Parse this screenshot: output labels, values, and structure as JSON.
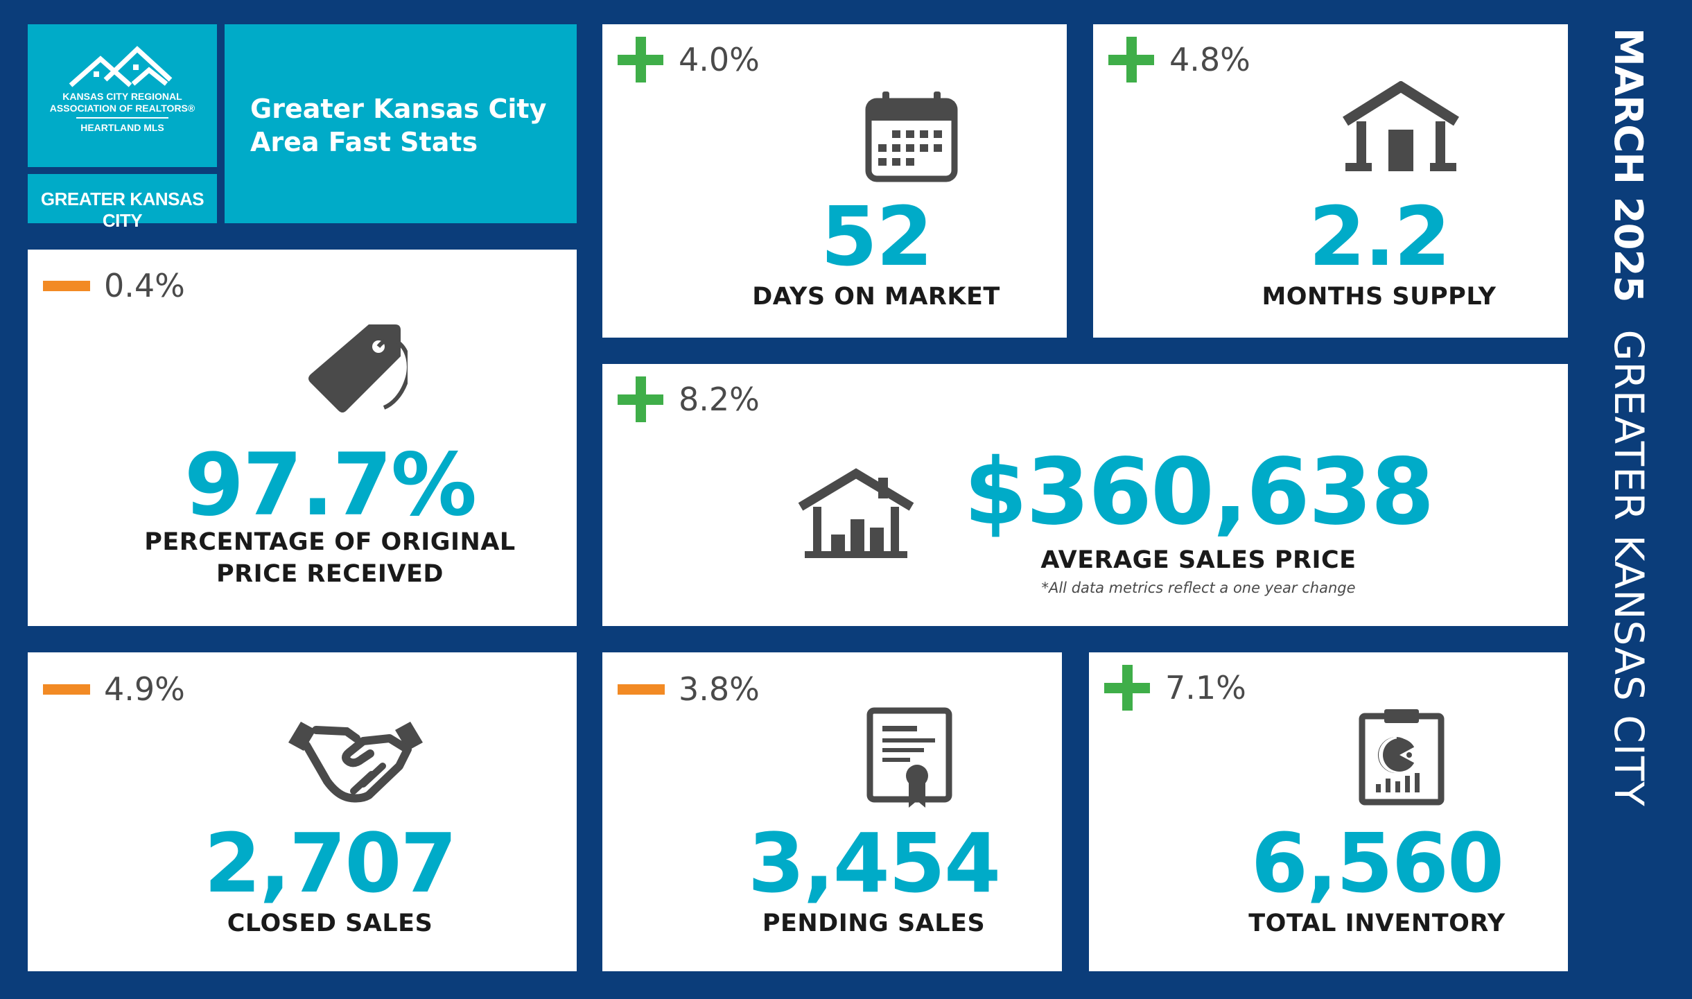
{
  "brand": {
    "logo_line1": "KANSAS CITY REGIONAL",
    "logo_line2": "ASSOCIATION OF REALTORS®",
    "logo_line3": "HEARTLAND MLS",
    "region_label": "GREATER KANSAS CITY",
    "title_line1": "Greater Kansas City",
    "title_line2": "Area Fast Stats"
  },
  "side": {
    "month": "MARCH 2025",
    "region": "GREATER KANSAS CITY"
  },
  "colors": {
    "background": "#0b3d7a",
    "accent": "#00abc8",
    "increase": "#3fae49",
    "decrease": "#f28a24",
    "icon": "#4a4a4a"
  },
  "stats": {
    "days_on_market": {
      "change_dir": "up",
      "change": "4.0%",
      "value": "52",
      "label": "DAYS ON MARKET",
      "icon": "calendar-icon"
    },
    "months_supply": {
      "change_dir": "up",
      "change": "4.8%",
      "value": "2.2",
      "label": "MONTHS SUPPLY",
      "icon": "house-icon"
    },
    "pct_original_price": {
      "change_dir": "down",
      "change": "0.4%",
      "value": "97.7%",
      "label_line1": "PERCENTAGE OF ORIGINAL",
      "label_line2": "PRICE RECEIVED",
      "icon": "price-tag-icon"
    },
    "avg_sales_price": {
      "change_dir": "up",
      "change": "8.2%",
      "value": "$360,638",
      "label": "AVERAGE SALES PRICE",
      "note": "*All data metrics reflect a one year change",
      "icon": "house-chart-icon"
    },
    "closed_sales": {
      "change_dir": "down",
      "change": "4.9%",
      "value": "2,707",
      "label": "CLOSED SALES",
      "icon": "handshake-icon"
    },
    "pending_sales": {
      "change_dir": "down",
      "change": "3.8%",
      "value": "3,454",
      "label": "PENDING SALES",
      "icon": "certificate-icon"
    },
    "total_inventory": {
      "change_dir": "up",
      "change": "7.1%",
      "value": "6,560",
      "label": "TOTAL INVENTORY",
      "icon": "clipboard-chart-icon"
    }
  }
}
